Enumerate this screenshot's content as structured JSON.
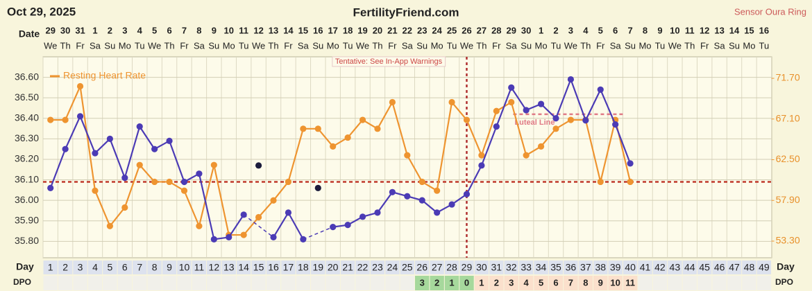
{
  "chart_data": {
    "type": "line",
    "date": "Oct 29, 2025",
    "title": "FertilityFriend.com",
    "sensor": "Sensor Oura Ring",
    "date_header": "Date",
    "day_header": "Day",
    "dpo_header": "DPO",
    "annotation": "Tentative: See In-App Warnings",
    "categories": [
      1,
      2,
      3,
      4,
      5,
      6,
      7,
      8,
      9,
      10,
      11,
      12,
      13,
      14,
      15,
      16,
      17,
      18,
      19,
      20,
      21,
      22,
      23,
      24,
      25,
      26,
      27,
      28,
      29,
      30,
      31,
      32,
      33,
      34,
      35,
      36,
      37,
      38,
      39,
      40,
      41,
      42,
      43,
      44,
      45,
      46,
      47,
      48,
      49
    ],
    "dates": [
      29,
      30,
      31,
      1,
      2,
      3,
      4,
      5,
      6,
      7,
      8,
      9,
      10,
      11,
      12,
      13,
      14,
      15,
      16,
      17,
      18,
      19,
      20,
      21,
      22,
      23,
      24,
      25,
      26,
      27,
      28,
      29,
      30,
      1,
      2,
      3,
      4,
      5,
      6,
      7,
      8,
      9,
      10,
      11,
      12,
      13,
      14,
      15,
      16
    ],
    "weekdays": [
      "We",
      "Th",
      "Fr",
      "Sa",
      "Su",
      "Mo",
      "Tu",
      "We",
      "Th",
      "Fr",
      "Sa",
      "Su",
      "Mo",
      "Tu",
      "We",
      "Th",
      "Fr",
      "Sa",
      "Su",
      "Mo",
      "Tu",
      "We",
      "Th",
      "Fr",
      "Sa",
      "Su",
      "Mo",
      "Tu",
      "We",
      "Th",
      "Fr",
      "Sa",
      "Su",
      "Mo",
      "Tu",
      "We",
      "Th",
      "Fr",
      "Sa",
      "Su",
      "Mo",
      "Tu",
      "We",
      "Th",
      "Fr",
      "Sa",
      "Su",
      "Mo",
      "Tu"
    ],
    "dpo": [
      null,
      null,
      null,
      null,
      null,
      null,
      null,
      null,
      null,
      null,
      null,
      null,
      null,
      null,
      null,
      null,
      null,
      null,
      null,
      null,
      null,
      null,
      null,
      null,
      null,
      3,
      2,
      1,
      0,
      1,
      2,
      3,
      4,
      5,
      6,
      7,
      8,
      9,
      10,
      11,
      null,
      null,
      null,
      null,
      null,
      null,
      null,
      null,
      null
    ],
    "ovulation_day": 29,
    "series": [
      {
        "color": "#4b3bb5",
        "axis": "y",
        "values": [
          36.06,
          36.25,
          36.41,
          36.23,
          36.3,
          36.11,
          36.36,
          36.25,
          36.29,
          36.09,
          36.13,
          35.81,
          35.82,
          35.93,
          null,
          35.82,
          35.94,
          35.81,
          null,
          35.87,
          35.88,
          35.92,
          35.94,
          36.04,
          36.02,
          36.0,
          35.94,
          35.98,
          36.03,
          36.17,
          36.36,
          36.55,
          36.44,
          36.47,
          36.4,
          36.59,
          36.39,
          36.54,
          36.37,
          36.18,
          null,
          null,
          null,
          null,
          null,
          null,
          null,
          null,
          null
        ]
      },
      {
        "name": "Resting Heart Rate",
        "color": "#ee9430",
        "axis": "y2",
        "values": [
          67.0,
          67.0,
          70.8,
          59.0,
          55.0,
          57.1,
          61.9,
          60.0,
          60.0,
          59.0,
          55.0,
          61.9,
          54.0,
          54.0,
          56.0,
          57.9,
          60.0,
          66.0,
          66.0,
          64.0,
          65.0,
          67.0,
          66.0,
          69.0,
          63.0,
          60.0,
          59.0,
          69.0,
          67.0,
          63.0,
          68.0,
          69.0,
          63.0,
          64.0,
          66.0,
          67.0,
          67.0,
          60.0,
          67.0,
          60.0,
          null,
          null,
          null,
          null,
          null,
          null,
          null,
          null,
          null
        ]
      }
    ],
    "discarded": {
      "color": "#1c1c3c",
      "values": [
        null,
        null,
        null,
        null,
        null,
        null,
        null,
        null,
        null,
        null,
        null,
        null,
        null,
        null,
        36.17,
        null,
        null,
        null,
        36.06,
        null,
        null,
        null,
        null,
        null,
        null,
        null,
        null,
        null,
        null,
        null,
        null,
        null,
        null,
        null,
        null,
        null,
        null,
        null,
        null,
        null,
        null,
        null,
        null,
        null,
        null,
        null,
        null,
        null,
        null
      ]
    },
    "coverline": {
      "value": 36.09,
      "color": "#c0392b"
    },
    "luteal_line": {
      "label": "Luteal Line",
      "value": 36.42,
      "start_day": 33,
      "end_day": 39,
      "color": "#e07b86"
    },
    "ylim": [
      35.72,
      36.7
    ],
    "yticks": [
      {
        "value": 35.8,
        "label": "35.80"
      },
      {
        "value": 35.9,
        "label": "35.90"
      },
      {
        "value": 36.0,
        "label": "36.00"
      },
      {
        "value": 36.1,
        "label": "36.10"
      },
      {
        "value": 36.2,
        "label": "36.20"
      },
      {
        "value": 36.3,
        "label": "36.30"
      },
      {
        "value": 36.4,
        "label": "36.40"
      },
      {
        "value": 36.5,
        "label": "36.50"
      },
      {
        "value": 36.6,
        "label": "36.60"
      }
    ],
    "y2lim": [
      51.42,
      74.13
    ],
    "y2ticks": [
      {
        "value": 53.3,
        "label": "53.30"
      },
      {
        "value": 57.9,
        "label": "57.90"
      },
      {
        "value": 62.5,
        "label": "62.50"
      },
      {
        "value": 67.1,
        "label": "67.10"
      },
      {
        "value": 71.7,
        "label": "71.70"
      }
    ],
    "grid": true
  }
}
